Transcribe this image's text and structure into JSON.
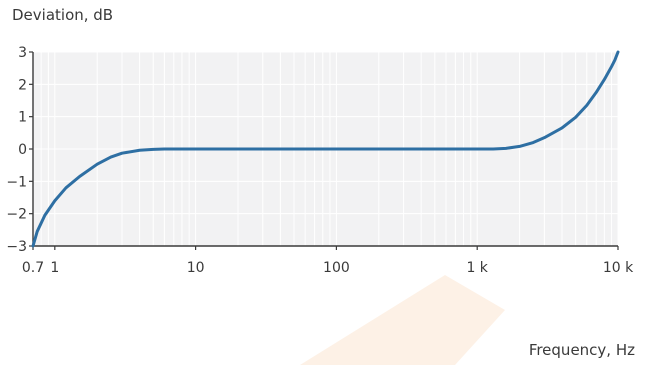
{
  "chart_data": {
    "type": "line",
    "title": "",
    "ylabel": "Deviation, dB",
    "xlabel": "Frequency, Hz",
    "x_scale": "log",
    "xlim": [
      0.7,
      10000
    ],
    "ylim": [
      -3,
      3
    ],
    "grid": true,
    "legend": "none",
    "x_ticks": [
      {
        "value": 0.7,
        "label": "0.7"
      },
      {
        "value": 1,
        "label": "1"
      },
      {
        "value": 10,
        "label": "10"
      },
      {
        "value": 100,
        "label": "100"
      },
      {
        "value": 1000,
        "label": "1 k"
      },
      {
        "value": 10000,
        "label": "10 k"
      }
    ],
    "y_ticks": [
      {
        "value": 3,
        "label": "3"
      },
      {
        "value": 2,
        "label": "2"
      },
      {
        "value": 1,
        "label": "1"
      },
      {
        "value": 0,
        "label": "0"
      },
      {
        "value": -1,
        "label": "−1"
      },
      {
        "value": -2,
        "label": "−2"
      },
      {
        "value": -3,
        "label": "−3"
      }
    ],
    "series": [
      {
        "x": [
          0.7,
          0.75,
          0.85,
          1.0,
          1.2,
          1.5,
          2.0,
          2.5,
          3.0,
          4.0,
          5.0,
          6.0,
          7.0,
          10,
          100,
          1000,
          1300,
          1600,
          2000,
          2500,
          3000,
          4000,
          5000,
          6000,
          7000,
          8000,
          9000,
          9500,
          10000
        ],
        "y": [
          -3.0,
          -2.55,
          -2.05,
          -1.6,
          -1.2,
          -0.85,
          -0.47,
          -0.25,
          -0.13,
          -0.04,
          -0.01,
          0,
          0,
          0,
          0,
          0,
          0,
          0.02,
          0.08,
          0.2,
          0.35,
          0.65,
          0.98,
          1.35,
          1.75,
          2.15,
          2.55,
          2.75,
          3.0
        ]
      }
    ],
    "colors": {
      "line": "#2e6fa3",
      "plot_background": "#f2f2f3",
      "grid": "#ffffff",
      "axis": "#3a3a3a",
      "watermark": "#fdf1e6"
    }
  }
}
